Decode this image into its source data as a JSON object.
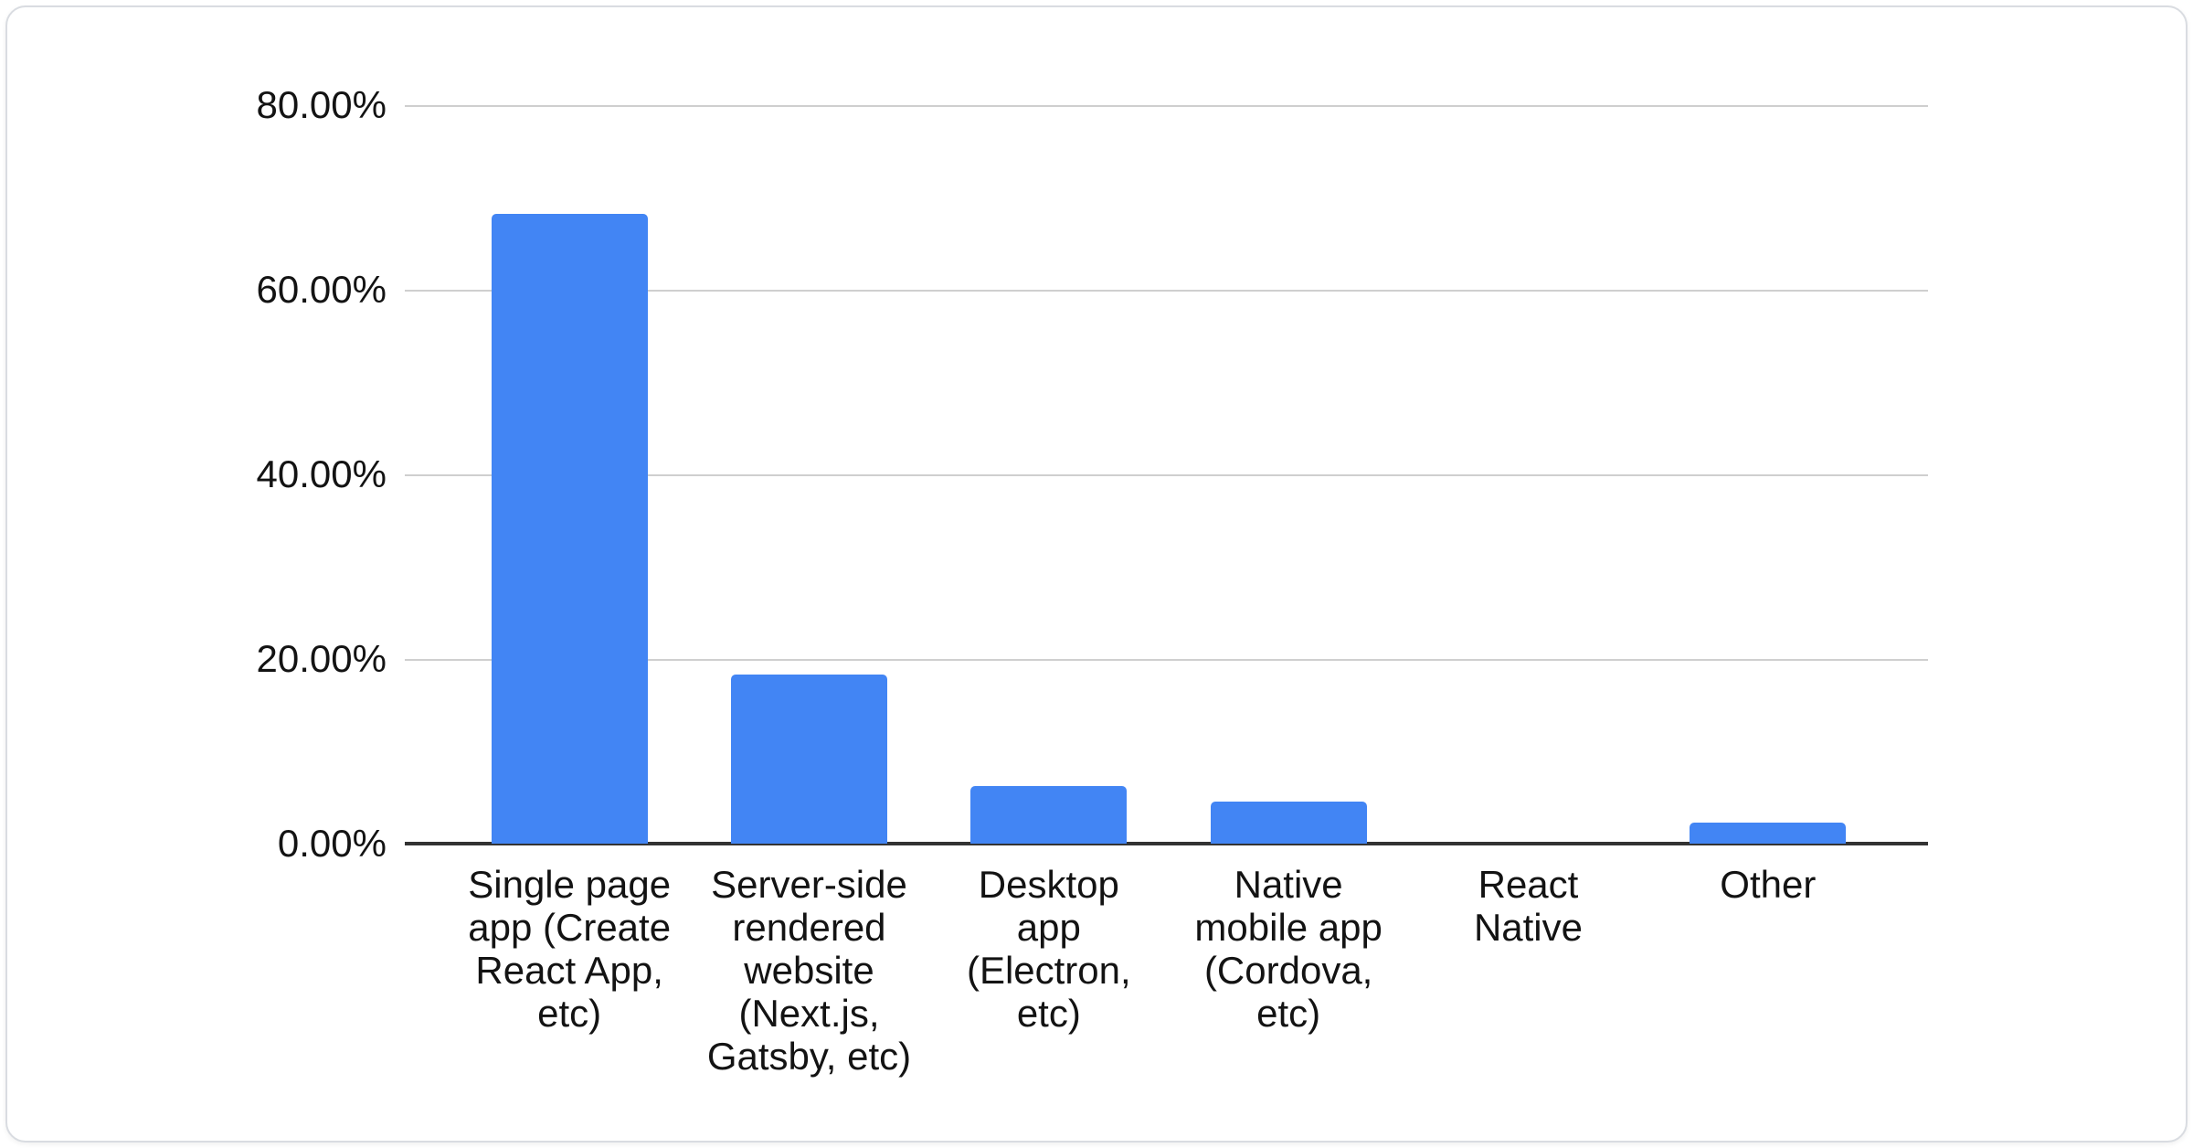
{
  "chart_data": {
    "type": "bar",
    "title": "",
    "xlabel": "",
    "ylabel": "",
    "unit": "%",
    "categories": [
      "Single page app (Create React App, etc)",
      "Server-side rendered website (Next.js, Gatsby, etc)",
      "Desktop app (Electron, etc)",
      "Native mobile app (Cordova, etc)",
      "React Native",
      "Other"
    ],
    "values": [
      68.2,
      18.3,
      6.2,
      4.6,
      0,
      2.3
    ],
    "ylim": [
      0,
      80
    ],
    "ytick_interval": 20,
    "grid": true,
    "legend": false,
    "bar_color": "#4285f4"
  },
  "y_axis": {
    "ticks": [
      "80.00%",
      "60.00%",
      "40.00%",
      "20.00%",
      "0.00%"
    ]
  },
  "x_axis": {
    "labels_display": [
      "Single page\napp (Create\nReact App,\netc)",
      "Server-side\nrendered\nwebsite\n(Next.js,\nGatsby, etc)",
      "Desktop\napp\n(Electron,\netc)",
      "Native\nmobile app\n(Cordova,\netc)",
      "React\nNative",
      "Other"
    ]
  },
  "colors": {
    "bar": "#4285f4",
    "gridline": "#cfcfcf",
    "axis_line": "#333333",
    "text": "#131313",
    "card_border": "#d9dce1",
    "card_background": "#ffffff"
  }
}
